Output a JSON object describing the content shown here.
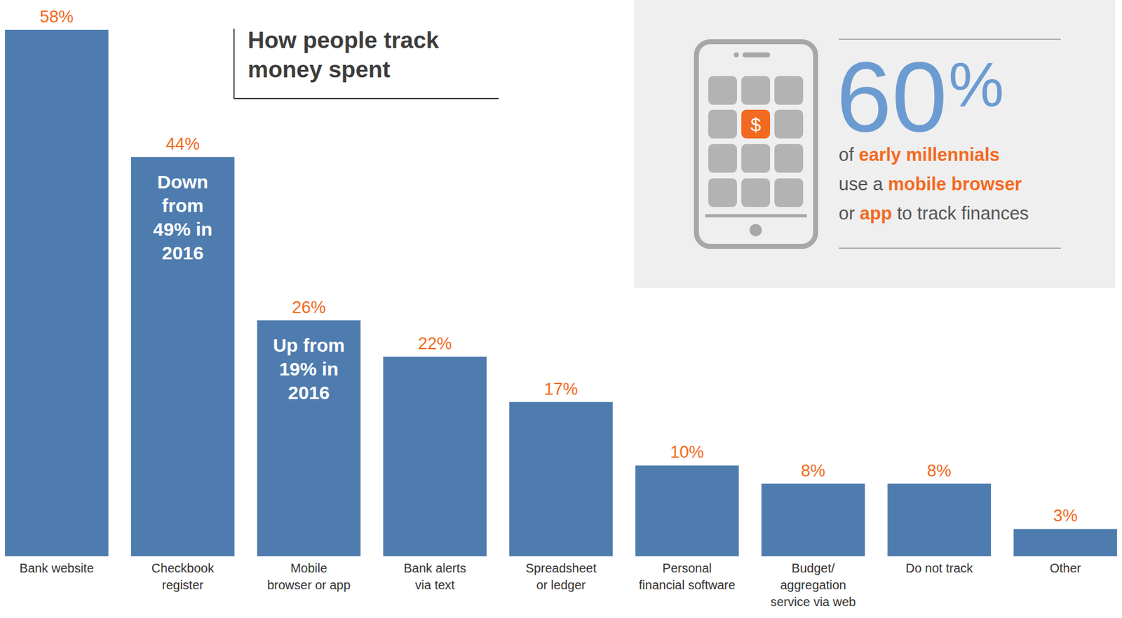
{
  "chart_data": {
    "type": "bar",
    "title": "How people track money spent",
    "categories": [
      "Bank website",
      "Checkbook register",
      "Mobile browser or app",
      "Bank alerts via text",
      "Spreadsheet or ledger",
      "Personal financial software",
      "Budget/ aggregation service via web",
      "Do not track",
      "Other"
    ],
    "values": [
      58,
      44,
      26,
      22,
      17,
      10,
      8,
      8,
      3
    ],
    "value_labels": [
      "58%",
      "44%",
      "26%",
      "22%",
      "17%",
      "10%",
      "8%",
      "8%",
      "3%"
    ],
    "color": "#4f7cae",
    "ylim": [
      0,
      58
    ],
    "data_labels": true,
    "tick_labels": false,
    "grid": false,
    "annotations": [
      {
        "text": "Down from 49% in 2016",
        "category": "Checkbook register"
      },
      {
        "text": "Up from 19% in 2016",
        "category": "Mobile browser or app"
      }
    ]
  },
  "callout": {
    "value": 60,
    "unit": "%",
    "icon_text": "$",
    "lines": [
      [
        {
          "text": "of "
        },
        {
          "text": "early millennials",
          "highlight": true
        }
      ],
      [
        {
          "text": "use a "
        },
        {
          "text": "mobile browser",
          "highlight": true
        }
      ],
      [
        {
          "text": "or "
        },
        {
          "text": "app",
          "highlight": true
        },
        {
          "text": " to track finances"
        }
      ]
    ]
  }
}
